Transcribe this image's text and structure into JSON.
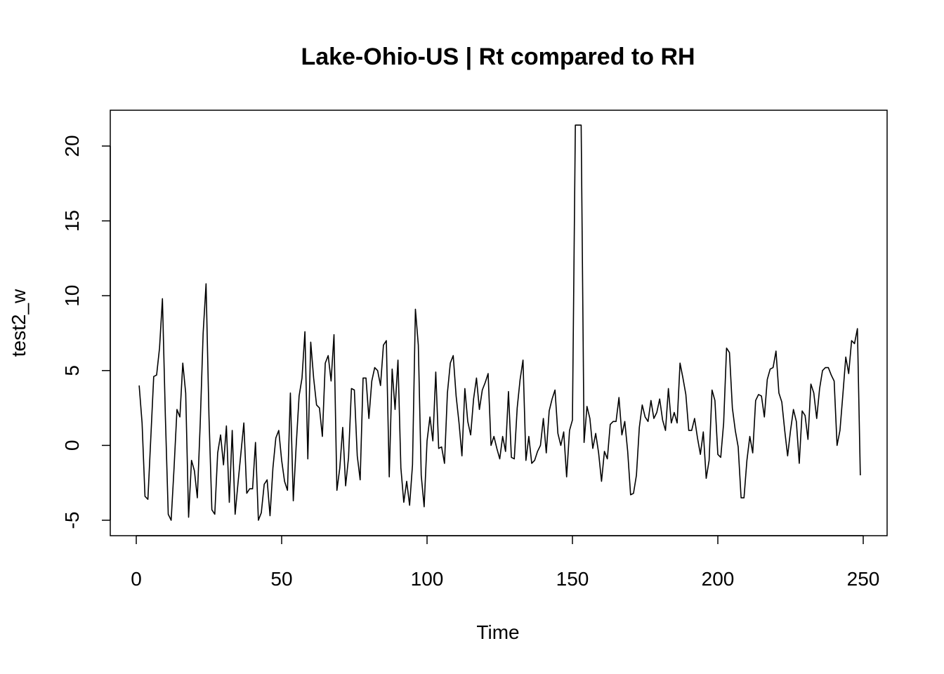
{
  "chart_data": {
    "type": "line",
    "title": "Lake-Ohio-US | Rt compared to RH",
    "xlabel": "Time",
    "ylabel": "test2_w",
    "xlim": [
      0,
      250
    ],
    "ylim": [
      -5,
      21.4
    ],
    "x_ticks": [
      0,
      50,
      100,
      150,
      200,
      250
    ],
    "x_tick_labels": [
      "0",
      "50",
      "100",
      "150",
      "200",
      "250"
    ],
    "y_ticks": [
      -5,
      0,
      5,
      10,
      15,
      20
    ],
    "y_tick_labels": [
      "-5",
      "0",
      "5",
      "10",
      "15",
      "20"
    ],
    "grid": false,
    "legend": "none",
    "series": [
      {
        "x_start": 1,
        "x_step": 1,
        "values": [
          4.0,
          1.5,
          -3.4,
          -3.6,
          0.5,
          4.6,
          4.7,
          6.5,
          9.8,
          2.0,
          -4.6,
          -5.0,
          -1.5,
          2.4,
          1.9,
          5.5,
          3.5,
          -4.8,
          -1.0,
          -1.7,
          -3.5,
          1.5,
          7.5,
          10.8,
          2.0,
          -4.3,
          -4.6,
          -0.5,
          0.7,
          -1.3,
          1.3,
          -3.8,
          1.0,
          -4.6,
          -2.5,
          -0.5,
          1.5,
          -3.2,
          -2.9,
          -2.9,
          0.2,
          -5.0,
          -4.5,
          -2.6,
          -2.3,
          -4.7,
          -1.5,
          0.5,
          1.0,
          -1.0,
          -2.4,
          -3.0,
          3.5,
          -3.7,
          0.0,
          3.3,
          4.5,
          7.6,
          -0.9,
          6.9,
          4.5,
          2.7,
          2.5,
          0.6,
          5.5,
          6.0,
          4.3,
          7.4,
          -3.0,
          -1.5,
          1.2,
          -2.7,
          -0.8,
          3.8,
          3.7,
          -0.7,
          -2.3,
          4.5,
          4.5,
          1.8,
          4.3,
          5.2,
          5.0,
          4.0,
          6.7,
          7.0,
          -2.1,
          5.1,
          2.4,
          5.7,
          -1.5,
          -3.8,
          -2.4,
          -4.0,
          -1.3,
          9.1,
          6.7,
          -2.0,
          -4.1,
          0.3,
          1.9,
          0.3,
          4.9,
          -0.2,
          -0.1,
          -1.2,
          3.5,
          5.5,
          6.0,
          3.3,
          1.5,
          -0.7,
          3.8,
          1.6,
          0.7,
          3.1,
          4.5,
          2.4,
          3.7,
          4.2,
          4.8,
          0.0,
          0.6,
          -0.2,
          -0.9,
          0.6,
          -0.4,
          3.6,
          -0.8,
          -0.9,
          2.5,
          4.4,
          5.7,
          -1.0,
          0.6,
          -1.2,
          -1.0,
          -0.4,
          0.0,
          1.8,
          -0.5,
          2.3,
          3.1,
          3.7,
          0.8,
          0.0,
          0.9,
          -2.1,
          1.0,
          1.7,
          21.4,
          21.4,
          21.4,
          0.2,
          2.6,
          1.8,
          -0.2,
          0.8,
          -0.5,
          -2.4,
          -0.4,
          -0.9,
          1.4,
          1.6,
          1.6,
          3.2,
          0.7,
          1.6,
          -0.4,
          -3.3,
          -3.2,
          -2.0,
          1.2,
          2.7,
          1.9,
          1.6,
          3.0,
          1.8,
          2.2,
          3.1,
          1.7,
          1.0,
          3.8,
          1.5,
          2.2,
          1.5,
          5.5,
          4.5,
          3.4,
          1.0,
          1.0,
          1.8,
          0.5,
          -0.6,
          0.9,
          -2.2,
          -1.0,
          3.7,
          3.0,
          -0.6,
          -0.8,
          1.5,
          6.5,
          6.2,
          2.5,
          1.0,
          -0.1,
          -3.5,
          -3.5,
          -1.0,
          0.6,
          -0.5,
          3.0,
          3.4,
          3.3,
          1.9,
          4.4,
          5.1,
          5.2,
          6.3,
          3.5,
          2.9,
          1.0,
          -0.7,
          1.0,
          2.4,
          1.6,
          -1.2,
          2.3,
          2.0,
          0.4,
          4.1,
          3.5,
          1.8,
          3.8,
          5.0,
          5.2,
          5.2,
          4.7,
          4.3,
          0.0,
          1.0,
          3.4,
          5.9,
          4.8,
          7.0,
          6.8,
          7.8,
          -2.0
        ]
      }
    ]
  }
}
